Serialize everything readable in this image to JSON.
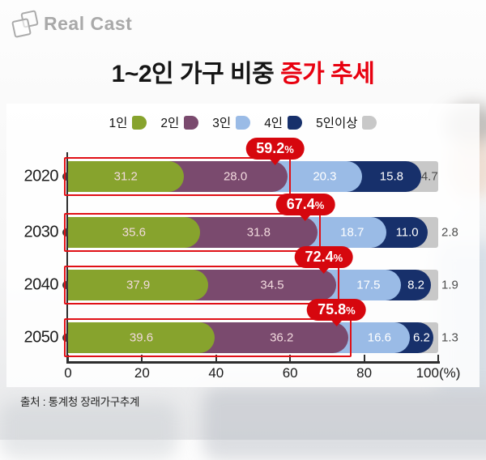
{
  "logo": {
    "text": "Real Cast"
  },
  "title": {
    "black": "1~2인 가구 비중 ",
    "red": "증가 추세"
  },
  "legend": [
    {
      "label": "1인",
      "color": "#87a32d"
    },
    {
      "label": "2인",
      "color": "#7a4a6e"
    },
    {
      "label": "3인",
      "color": "#9abbe6"
    },
    {
      "label": "4인",
      "color": "#17306b"
    },
    {
      "label": "5인이상",
      "color": "#c8c8c8"
    }
  ],
  "chart_data": {
    "type": "bar",
    "orientation": "horizontal",
    "stacked": true,
    "title": "1~2인 가구 비중 증가 추세",
    "categories": [
      "2020",
      "2030",
      "2040",
      "2050"
    ],
    "series": [
      {
        "name": "1인",
        "color": "#87a32d",
        "values": [
          31.2,
          35.6,
          37.9,
          39.6
        ]
      },
      {
        "name": "2인",
        "color": "#7a4a6e",
        "values": [
          28.0,
          31.8,
          34.5,
          36.2
        ]
      },
      {
        "name": "3인",
        "color": "#9abbe6",
        "values": [
          20.3,
          18.7,
          17.5,
          16.6
        ]
      },
      {
        "name": "4인",
        "color": "#17306b",
        "values": [
          15.8,
          11.0,
          8.2,
          6.2
        ]
      },
      {
        "name": "5인이상",
        "color": "#c8c8c8",
        "values": [
          4.7,
          2.8,
          1.9,
          1.3
        ]
      }
    ],
    "value_labels": [
      [
        "31.2",
        "28.0",
        "20.3",
        "15.8",
        "4.7"
      ],
      [
        "35.6",
        "31.8",
        "18.7",
        "11.0",
        "2.8"
      ],
      [
        "37.9",
        "34.5",
        "17.5",
        "8.2",
        "1.9"
      ],
      [
        "39.6",
        "36.2",
        "16.6",
        "6.2",
        "1.3"
      ]
    ],
    "annotations": [
      {
        "category": "2020",
        "value": "59.2",
        "unit": "%"
      },
      {
        "category": "2030",
        "value": "67.4",
        "unit": "%"
      },
      {
        "category": "2040",
        "value": "72.4",
        "unit": "%"
      },
      {
        "category": "2050",
        "value": "75.8",
        "unit": "%"
      }
    ],
    "xlim": [
      0,
      100
    ],
    "x_ticks": [
      "0",
      "20",
      "40",
      "60",
      "80",
      "100(%)"
    ],
    "legend_position": "top",
    "grid": false,
    "highlight_color": "#d6070e",
    "label_colors": [
      "#f2dade",
      "#f2dade",
      "#ffffff",
      "#ffffff",
      "#4d4d4d"
    ]
  },
  "source": "출처 : 통계청 장래가구추계"
}
